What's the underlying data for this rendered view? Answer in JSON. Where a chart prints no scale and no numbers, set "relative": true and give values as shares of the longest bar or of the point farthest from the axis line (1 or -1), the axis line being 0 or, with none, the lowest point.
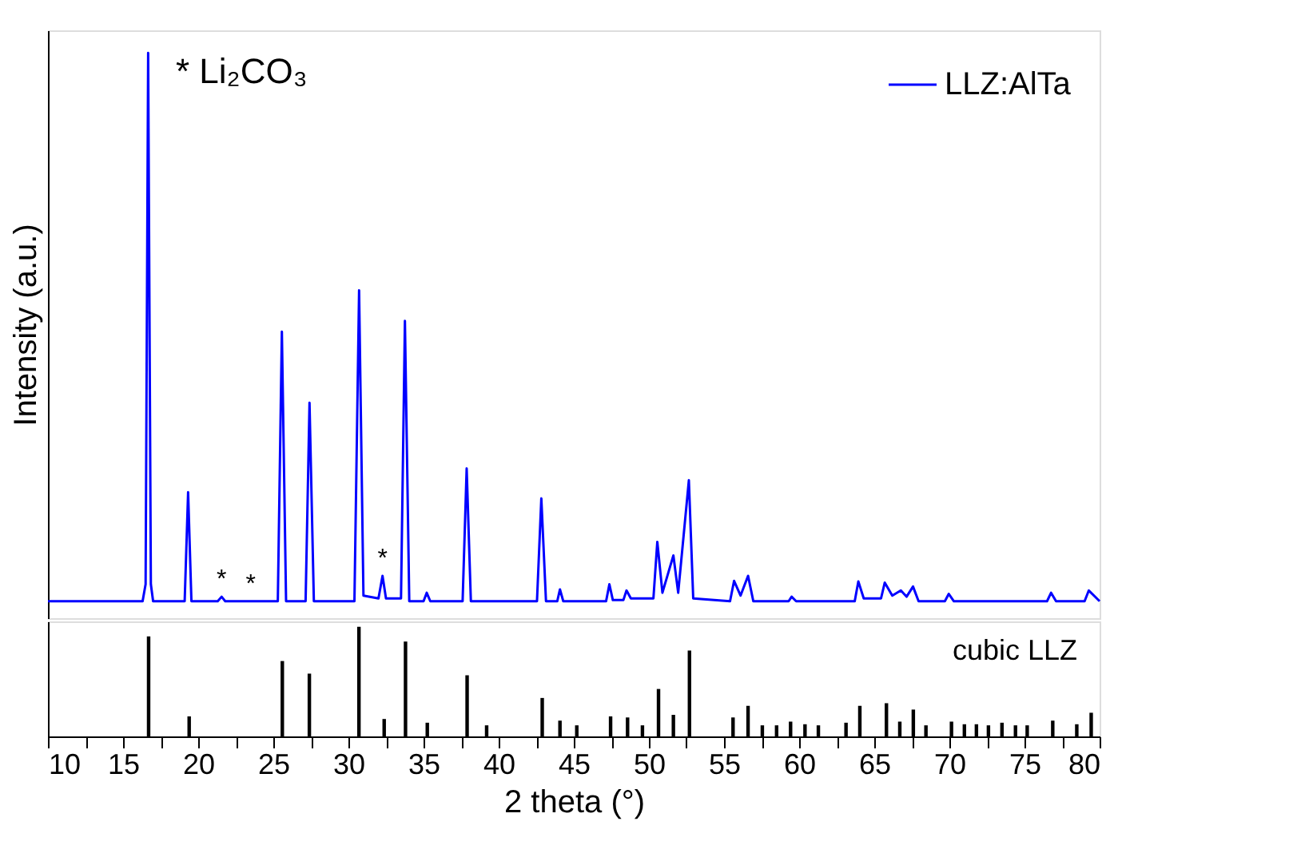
{
  "chart_data": [
    {
      "type": "line",
      "relative": true,
      "ylabel": "Intensity (a.u.)",
      "xlim": [
        10,
        80
      ],
      "tick_labels": false,
      "legend": "top right",
      "marker": "none",
      "line_style": "solid",
      "annotations": [
        "* Li₂CO₃",
        {
          "text": "*",
          "x": 21.56,
          "y": 0.038
        },
        {
          "text": "*",
          "x": 23.5,
          "y": 0.03
        },
        {
          "text": "*",
          "x": 32.27,
          "y": 0.075
        }
      ],
      "series": [
        {
          "name": "LLZ:AlTa",
          "color": "#0000ff",
          "x": [
            10,
            16.3,
            16.5,
            16.67,
            16.85,
            17.0,
            19.1,
            19.33,
            19.55,
            21.3,
            21.56,
            21.8,
            25.3,
            25.57,
            25.85,
            27.15,
            27.41,
            27.7,
            30.4,
            30.71,
            31.0,
            32.0,
            32.27,
            32.5,
            33.5,
            33.76,
            34.05,
            35.0,
            35.21,
            35.45,
            37.6,
            37.87,
            38.15,
            42.55,
            42.84,
            43.15,
            43.9,
            44.08,
            44.3,
            47.15,
            47.37,
            47.6,
            48.3,
            48.51,
            48.8,
            50.3,
            50.56,
            50.9,
            51.63,
            51.95,
            52.66,
            52.95,
            55.4,
            55.67,
            56.1,
            56.6,
            56.95,
            59.3,
            59.5,
            59.8,
            63.7,
            63.94,
            64.3,
            65.45,
            65.7,
            66.2,
            66.77,
            67.15,
            67.58,
            67.95,
            69.7,
            69.96,
            70.3,
            76.5,
            76.77,
            77.1,
            79.0,
            79.28,
            80
          ],
          "values": [
            0.03,
            0.03,
            0.06,
            1,
            0.06,
            0.03,
            0.03,
            0.223,
            0.03,
            0.03,
            0.038,
            0.03,
            0.03,
            0.507,
            0.03,
            0.03,
            0.381,
            0.03,
            0.03,
            0.58,
            0.04,
            0.035,
            0.075,
            0.035,
            0.035,
            0.526,
            0.03,
            0.03,
            0.045,
            0.03,
            0.03,
            0.265,
            0.03,
            0.03,
            0.212,
            0.03,
            0.03,
            0.051,
            0.03,
            0.03,
            0.06,
            0.032,
            0.032,
            0.049,
            0.035,
            0.035,
            0.135,
            0.045,
            0.111,
            0.045,
            0.244,
            0.035,
            0.03,
            0.066,
            0.04,
            0.075,
            0.03,
            0.03,
            0.038,
            0.03,
            0.03,
            0.065,
            0.035,
            0.035,
            0.063,
            0.04,
            0.049,
            0.038,
            0.056,
            0.03,
            0.03,
            0.043,
            0.03,
            0.03,
            0.045,
            0.03,
            0.03,
            0.049,
            0.03
          ]
        }
      ]
    },
    {
      "type": "bar",
      "relative": true,
      "xlabel": "2 theta (°)",
      "xlim": [
        10,
        80
      ],
      "tick_labels": "x",
      "legend": "top right",
      "xticks": [
        10,
        {
          "value": 12.5,
          "label": null
        },
        15,
        {
          "value": 17.5,
          "label": null
        },
        20,
        {
          "value": 22.5,
          "label": null
        },
        25,
        {
          "value": 27.5,
          "label": null
        },
        30,
        {
          "value": 32.5,
          "label": null
        },
        35,
        {
          "value": 37.5,
          "label": null
        },
        40,
        {
          "value": 42.5,
          "label": null
        },
        45,
        {
          "value": 47.5,
          "label": null
        },
        50,
        {
          "value": 52.5,
          "label": null
        },
        55,
        {
          "value": 57.5,
          "label": null
        },
        60,
        {
          "value": 62.5,
          "label": null
        },
        65,
        {
          "value": 67.5,
          "label": null
        },
        70,
        {
          "value": 72.5,
          "label": null
        },
        75,
        {
          "value": 77.5,
          "label": null
        },
        80
      ],
      "series": [
        {
          "name": "cubic LLZ",
          "color": "#000000",
          "x": [
            16.7,
            19.4,
            25.6,
            27.4,
            30.7,
            32.38,
            33.8,
            35.25,
            37.9,
            39.2,
            42.9,
            44.08,
            45.2,
            47.45,
            48.58,
            49.57,
            50.64,
            51.63,
            52.7,
            55.6,
            56.6,
            57.55,
            58.5,
            59.43,
            60.39,
            61.28,
            63.12,
            64.04,
            65.81,
            66.7,
            67.6,
            68.44,
            70.14,
            71.0,
            71.8,
            72.6,
            73.5,
            74.4,
            75.18,
            76.88,
            78.48,
            79.44
          ],
          "values": [
            0.913,
            0.183,
            0.688,
            0.573,
            1,
            0.159,
            0.866,
            0.125,
            0.558,
            0.101,
            0.351,
            0.144,
            0.101,
            0.183,
            0.173,
            0.101,
            0.433,
            0.197,
            0.784,
            0.173,
            0.279,
            0.101,
            0.101,
            0.135,
            0.111,
            0.101,
            0.125,
            0.279,
            0.303,
            0.135,
            0.245,
            0.101,
            0.135,
            0.111,
            0.111,
            0.101,
            0.125,
            0.101,
            0.101,
            0.144,
            0.111,
            0.216
          ]
        }
      ]
    }
  ]
}
